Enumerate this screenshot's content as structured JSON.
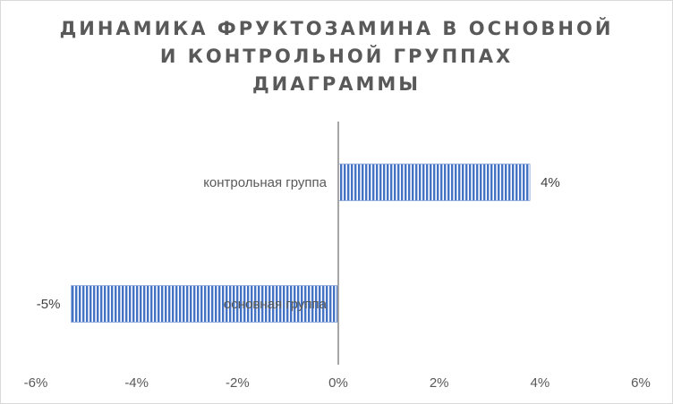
{
  "chart_data": {
    "type": "bar",
    "orientation": "horizontal",
    "title_lines": [
      "ДИНАМИКА ФРУКТОЗАМИНА В ОСНОВНОЙ",
      "И КОНТРОЛЬНОЙ ГРУППАХ",
      "ДИАГРАММЫ"
    ],
    "categories": [
      "основная группа",
      "контрольная группа"
    ],
    "values": [
      -5.3,
      3.8
    ],
    "data_labels": [
      "-5%",
      "4%"
    ],
    "xlim": [
      -6,
      6
    ],
    "xticks": [
      -6,
      -4,
      -2,
      0,
      2,
      4,
      6
    ],
    "xtick_labels": [
      "-6%",
      "-4%",
      "-2%",
      "0%",
      "2%",
      "4%",
      "6%"
    ],
    "grid": false,
    "legend": "none",
    "bar_color": "#4472c4",
    "axis_color": "#a6a6a6"
  }
}
